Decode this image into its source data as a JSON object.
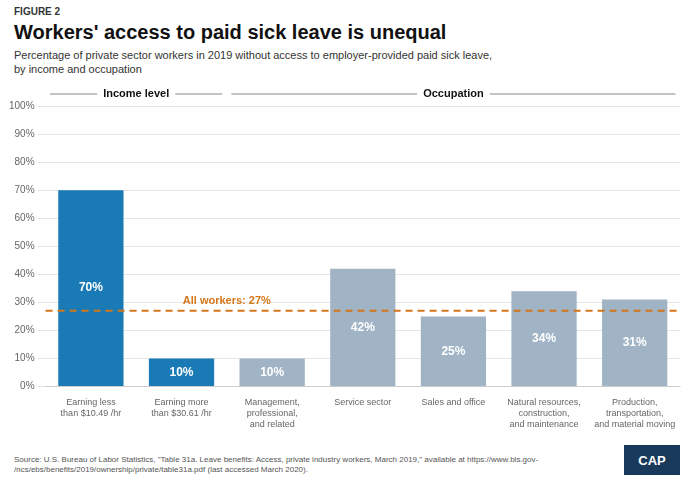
{
  "chart_data": {
    "type": "bar",
    "figure_label": "FIGURE 2",
    "title": "Workers' access to paid sick leave is unequal",
    "subtitle": "Percentage of private sector workers in 2019 without access to employer-provided paid sick leave,\nby income and occupation",
    "categories": [
      "Earning less\nthan $10.49 /hr",
      "Earning more\nthan $30.61 /hr",
      "Management,\nprofessional,\nand related",
      "Service sector",
      "Sales and office",
      "Natural resources,\nconstruction,\nand maintenance",
      "Production,\ntransportation,\nand material moving"
    ],
    "values": [
      70,
      10,
      10,
      42,
      25,
      34,
      31
    ],
    "value_labels": [
      "70%",
      "10%",
      "10%",
      "42%",
      "25%",
      "34%",
      "31%"
    ],
    "data_labels": true,
    "colors": [
      "#1a7ab5",
      "#1a7ab5",
      "#a0b4c5",
      "#a0b4c5",
      "#a0b4c5",
      "#a0b4c5",
      "#a0b4c5"
    ],
    "ylim": [
      0,
      100
    ],
    "yticks": [
      {
        "value": 0,
        "label": "0%"
      },
      {
        "value": 10,
        "label": "10%"
      },
      {
        "value": 20,
        "label": "20%"
      },
      {
        "value": 30,
        "label": "30%"
      },
      {
        "value": 40,
        "label": "40%"
      },
      {
        "value": 50,
        "label": "50%"
      },
      {
        "value": 60,
        "label": "60%"
      },
      {
        "value": 70,
        "label": "70%"
      },
      {
        "value": 80,
        "label": "80%"
      },
      {
        "value": 90,
        "label": "90%"
      },
      {
        "value": 100,
        "label": "100%"
      }
    ],
    "grid": true,
    "reference_line": {
      "value": 27,
      "label": "All workers: 27%",
      "color": "#D4761A"
    },
    "groups": [
      {
        "name": "Income level",
        "size": 2
      },
      {
        "name": "Occupation",
        "size": 5
      }
    ],
    "source": "Source: U.S. Bureau of Labor Statistics, \"Table 31a. Leave benefits: Access, private industry workers, March 2019,\" available at https://www.bls.gov-\n/ncs/ebs/benefits/2019/ownership/private/table31a.pdf (last accessed March 2020).",
    "logo": "CAP",
    "logo_color": "#1a3a5c"
  }
}
